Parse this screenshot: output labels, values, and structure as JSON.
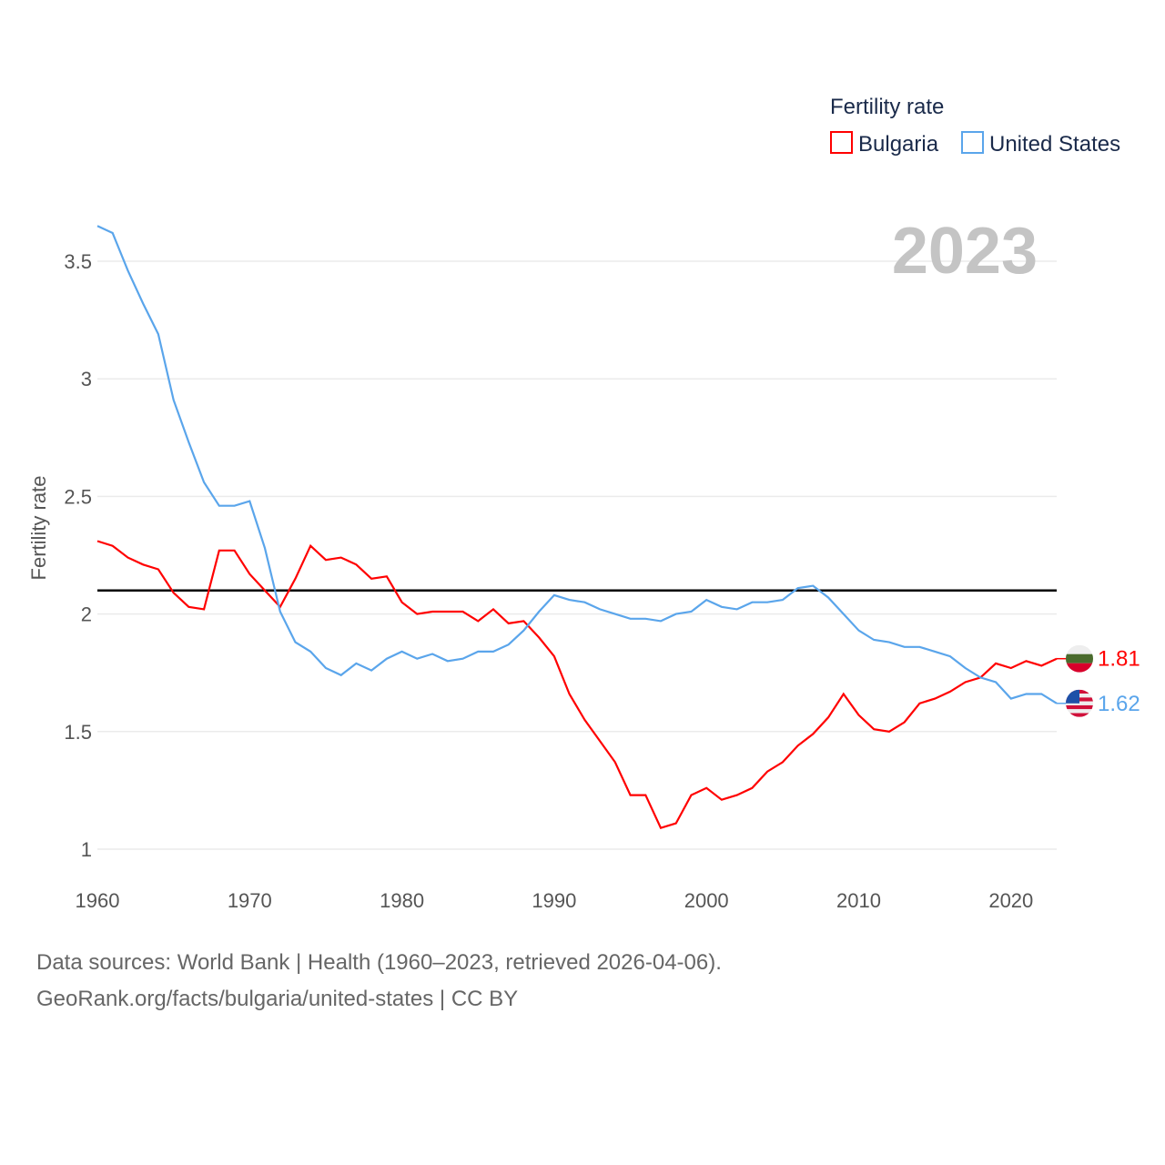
{
  "chart_data": {
    "type": "line",
    "title": "Fertility rate",
    "big_year_label": "2023",
    "xlabel": "",
    "ylabel": "Fertility rate",
    "xlim": [
      1960,
      2023
    ],
    "ylim": [
      1,
      3.7
    ],
    "xticks": [
      "1960",
      "1970",
      "1980",
      "1990",
      "2000",
      "2010",
      "2020"
    ],
    "yticks": [
      "1",
      "1.5",
      "2",
      "2.5",
      "3",
      "3.5"
    ],
    "grid": true,
    "legend_position": "top-right",
    "reference_line": 2.1,
    "x": [
      1960,
      1961,
      1962,
      1963,
      1964,
      1965,
      1966,
      1967,
      1968,
      1969,
      1970,
      1971,
      1972,
      1973,
      1974,
      1975,
      1976,
      1977,
      1978,
      1979,
      1980,
      1981,
      1982,
      1983,
      1984,
      1985,
      1986,
      1987,
      1988,
      1989,
      1990,
      1991,
      1992,
      1993,
      1994,
      1995,
      1996,
      1997,
      1998,
      1999,
      2000,
      2001,
      2002,
      2003,
      2004,
      2005,
      2006,
      2007,
      2008,
      2009,
      2010,
      2011,
      2012,
      2013,
      2014,
      2015,
      2016,
      2017,
      2018,
      2019,
      2020,
      2021,
      2022,
      2023
    ],
    "series": [
      {
        "name": "Bulgaria",
        "color": "#ff0000",
        "end_label": "1.81",
        "values": [
          2.31,
          2.29,
          2.24,
          2.21,
          2.19,
          2.09,
          2.03,
          2.02,
          2.27,
          2.27,
          2.17,
          2.1,
          2.03,
          2.15,
          2.29,
          2.23,
          2.24,
          2.21,
          2.15,
          2.16,
          2.05,
          2.0,
          2.01,
          2.01,
          2.01,
          1.97,
          2.02,
          1.96,
          1.97,
          1.9,
          1.82,
          1.66,
          1.55,
          1.46,
          1.37,
          1.23,
          1.23,
          1.09,
          1.11,
          1.23,
          1.26,
          1.21,
          1.23,
          1.26,
          1.33,
          1.37,
          1.44,
          1.49,
          1.56,
          1.66,
          1.57,
          1.51,
          1.5,
          1.54,
          1.62,
          1.64,
          1.67,
          1.71,
          1.73,
          1.79,
          1.77,
          1.8,
          1.78,
          1.81
        ]
      },
      {
        "name": "United States",
        "color": "#5aa5eb",
        "end_label": "1.62",
        "values": [
          3.65,
          3.62,
          3.46,
          3.32,
          3.19,
          2.91,
          2.73,
          2.56,
          2.46,
          2.46,
          2.48,
          2.28,
          2.01,
          1.88,
          1.84,
          1.77,
          1.74,
          1.79,
          1.76,
          1.81,
          1.84,
          1.81,
          1.83,
          1.8,
          1.81,
          1.84,
          1.84,
          1.87,
          1.93,
          2.01,
          2.08,
          2.06,
          2.05,
          2.02,
          2.0,
          1.98,
          1.98,
          1.97,
          2.0,
          2.01,
          2.06,
          2.03,
          2.02,
          2.05,
          2.05,
          2.06,
          2.11,
          2.12,
          2.07,
          2.0,
          1.93,
          1.89,
          1.88,
          1.86,
          1.86,
          1.84,
          1.82,
          1.77,
          1.73,
          1.71,
          1.64,
          1.66,
          1.66,
          1.62
        ]
      }
    ]
  },
  "footer": {
    "line1": "Data sources: World Bank | Health (1960–2023, retrieved 2026-04-06).",
    "line2": "GeoRank.org/facts/bulgaria/united-states | CC BY"
  }
}
